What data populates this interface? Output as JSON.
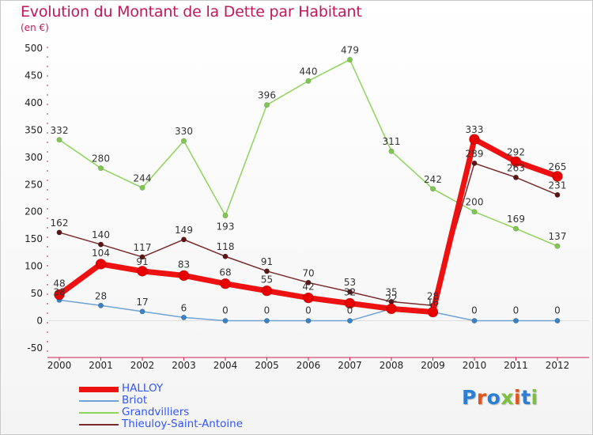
{
  "title": "Evolution du Montant de la Dette par Habitant",
  "subtitle": "(en €)",
  "logo": {
    "text": "Proxiti",
    "colors": [
      "#2a7fd4",
      "#e0561f",
      "#2a7fd4",
      "#7bc043",
      "#e0561f",
      "#2a7fd4",
      "#7bc043"
    ]
  },
  "chart_data": {
    "type": "line",
    "x": [
      "2000",
      "2001",
      "2002",
      "2003",
      "2004",
      "2005",
      "2006",
      "2007",
      "2008",
      "2009",
      "2010",
      "2011",
      "2012"
    ],
    "ylim": [
      -50,
      500
    ],
    "yticks": [
      -50,
      0,
      50,
      100,
      150,
      200,
      250,
      300,
      350,
      400,
      450,
      500
    ],
    "grid": false,
    "legend_position": "bottom-left",
    "series": [
      {
        "name": "Grandvilliers",
        "color": "#8ed35a",
        "marker": "#7ec850",
        "width": 1.5,
        "r": 3.2,
        "values": [
          332,
          280,
          244,
          330,
          193,
          396,
          440,
          479,
          311,
          242,
          200,
          169,
          137
        ]
      },
      {
        "name": "Thieuloy-Saint-Antoine",
        "color": "#7a2a2a",
        "marker": "#5c1414",
        "width": 1.5,
        "r": 3.2,
        "values": [
          162,
          140,
          117,
          149,
          118,
          91,
          70,
          53,
          35,
          28,
          289,
          263,
          231
        ]
      },
      {
        "name": "Briot",
        "color": "#6ea3d6",
        "marker": "#3a82c4",
        "width": 1.5,
        "r": 3.2,
        "values": [
          38,
          28,
          17,
          6,
          0,
          0,
          0,
          0,
          22,
          16,
          0,
          0,
          0
        ]
      },
      {
        "name": "HALLOY",
        "color": "#ee1111",
        "marker": "#e80000",
        "width": 7,
        "r": 6.5,
        "values": [
          48,
          104,
          91,
          83,
          68,
          55,
          42,
          32,
          22,
          16,
          333,
          292,
          265
        ]
      }
    ],
    "data_labels": [
      {
        "text": "332",
        "x": 0,
        "y": 332,
        "dy": -8
      },
      {
        "text": "280",
        "x": 1,
        "y": 280,
        "dy": -8
      },
      {
        "text": "244",
        "x": 2,
        "y": 244,
        "dy": -8
      },
      {
        "text": "330",
        "x": 3,
        "y": 330,
        "dy": -8
      },
      {
        "text": "193",
        "x": 4,
        "y": 193,
        "dy": 18
      },
      {
        "text": "396",
        "x": 5,
        "y": 396,
        "dy": -8
      },
      {
        "text": "440",
        "x": 6,
        "y": 440,
        "dy": -8
      },
      {
        "text": "479",
        "x": 7,
        "y": 479,
        "dy": -8
      },
      {
        "text": "311",
        "x": 8,
        "y": 311,
        "dy": -8
      },
      {
        "text": "242",
        "x": 9,
        "y": 242,
        "dy": -8
      },
      {
        "text": "333",
        "x": 10,
        "y": 333,
        "dy": -8
      },
      {
        "text": "200",
        "x": 10,
        "y": 200,
        "dy": -8
      },
      {
        "text": "289",
        "x": 10,
        "y": 289,
        "dy": -8
      },
      {
        "text": "292",
        "x": 11,
        "y": 292,
        "dy": -8
      },
      {
        "text": "263",
        "x": 11,
        "y": 263,
        "dy": -8
      },
      {
        "text": "169",
        "x": 11,
        "y": 169,
        "dy": -8
      },
      {
        "text": "265",
        "x": 12,
        "y": 265,
        "dy": -8
      },
      {
        "text": "231",
        "x": 12,
        "y": 231,
        "dy": -8
      },
      {
        "text": "137",
        "x": 12,
        "y": 137,
        "dy": -8
      },
      {
        "text": "162",
        "x": 0,
        "y": 162,
        "dy": -8
      },
      {
        "text": "140",
        "x": 1,
        "y": 140,
        "dy": -8
      },
      {
        "text": "117",
        "x": 2,
        "y": 117,
        "dy": -8
      },
      {
        "text": "149",
        "x": 3,
        "y": 149,
        "dy": -8
      },
      {
        "text": "118",
        "x": 4,
        "y": 118,
        "dy": -8
      },
      {
        "text": "91",
        "x": 5,
        "y": 91,
        "dy": -8
      },
      {
        "text": "70",
        "x": 6,
        "y": 70,
        "dy": -8
      },
      {
        "text": "53",
        "x": 7,
        "y": 53,
        "dy": -8
      },
      {
        "text": "35",
        "x": 8,
        "y": 35,
        "dy": -8
      },
      {
        "text": "28",
        "x": 9,
        "y": 28,
        "dy": -8
      },
      {
        "text": "48",
        "x": 0,
        "y": 48,
        "dy": -10
      },
      {
        "text": "104",
        "x": 1,
        "y": 104,
        "dy": -10
      },
      {
        "text": "91",
        "x": 2,
        "y": 91,
        "dy": -8
      },
      {
        "text": "83",
        "x": 3,
        "y": 83,
        "dy": -10
      },
      {
        "text": "68",
        "x": 4,
        "y": 68,
        "dy": -10
      },
      {
        "text": "55",
        "x": 5,
        "y": 55,
        "dy": -10
      },
      {
        "text": "42",
        "x": 6,
        "y": 42,
        "dy": -10
      },
      {
        "text": "32",
        "x": 7,
        "y": 32,
        "dy": -10
      },
      {
        "text": "22",
        "x": 8,
        "y": 22,
        "dy": -9
      },
      {
        "text": "16",
        "x": 9,
        "y": 16,
        "dy": -8
      },
      {
        "text": "38",
        "x": 0,
        "y": 38,
        "dy": -6
      },
      {
        "text": "28",
        "x": 1,
        "y": 28,
        "dy": -8
      },
      {
        "text": "17",
        "x": 2,
        "y": 17,
        "dy": -8
      },
      {
        "text": "6",
        "x": 3,
        "y": 6,
        "dy": -8
      },
      {
        "text": "0",
        "x": 4,
        "y": 0,
        "dy": -9
      },
      {
        "text": "0",
        "x": 5,
        "y": 0,
        "dy": -9
      },
      {
        "text": "0",
        "x": 6,
        "y": 0,
        "dy": -9
      },
      {
        "text": "0",
        "x": 7,
        "y": 0,
        "dy": -9
      },
      {
        "text": "0",
        "x": 10,
        "y": 0,
        "dy": -9
      },
      {
        "text": "0",
        "x": 11,
        "y": 0,
        "dy": -9
      },
      {
        "text": "0",
        "x": 12,
        "y": 0,
        "dy": -9
      }
    ]
  },
  "legend": [
    {
      "label": "HALLOY",
      "color": "#ee1111",
      "thickness": 7
    },
    {
      "label": "Briot",
      "color": "#6ea3d6",
      "thickness": 2
    },
    {
      "label": "Grandvilliers",
      "color": "#8ed35a",
      "thickness": 2
    },
    {
      "label": "Thieuloy-Saint-Antoine",
      "color": "#7a2a2a",
      "thickness": 2
    }
  ]
}
